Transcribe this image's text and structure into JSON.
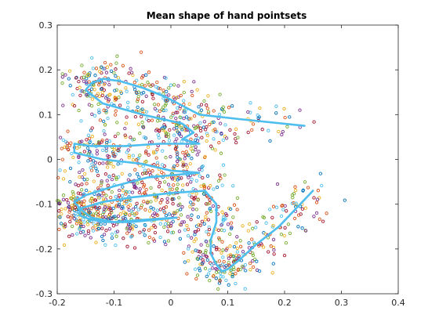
{
  "chart_data": {
    "type": "scatter",
    "title": "Mean shape of hand pointsets",
    "xlabel": "",
    "ylabel": "",
    "xlim": [
      -0.2,
      0.4
    ],
    "ylim": [
      -0.3,
      0.3
    ],
    "xticks": [
      -0.2,
      -0.1,
      0,
      0.1,
      0.2,
      0.3,
      0.4
    ],
    "xtick_labels": [
      "-0.2",
      "-0.1",
      "0",
      "0.1",
      "0.2",
      "0.3",
      "0.4"
    ],
    "yticks": [
      -0.3,
      -0.2,
      -0.1,
      0,
      0.1,
      0.2,
      0.3
    ],
    "ytick_labels": [
      "-0.3",
      "-0.2",
      "-0.1",
      "0",
      "0.1",
      "0.2",
      "0.3"
    ],
    "grid": false,
    "box": true,
    "scatter_colors": [
      "#0072BD",
      "#D95319",
      "#EDB120",
      "#7E2F8E",
      "#77AC30",
      "#4DBEEE",
      "#A2142F"
    ],
    "mean_line_color": "#4DBEEE",
    "mean_shape": {
      "name": "mean",
      "x": [
        0.235,
        0.12,
        0.05,
        0.02,
        -0.01,
        -0.05,
        -0.09,
        -0.12,
        -0.14,
        -0.15,
        -0.12,
        -0.05,
        0.02,
        0.04,
        0.02,
        0.05,
        -0.02,
        -0.08,
        -0.14,
        -0.17,
        -0.17,
        -0.12,
        -0.05,
        0.0,
        0.05,
        -0.04,
        -0.1,
        -0.15,
        -0.17,
        -0.16,
        -0.14,
        -0.1,
        -0.05,
        0.01,
        -0.03,
        -0.07,
        -0.11,
        -0.14,
        -0.16,
        -0.16,
        -0.12,
        -0.07,
        0.0,
        0.06,
        0.08,
        0.08,
        0.07,
        0.07,
        0.08,
        0.09,
        0.1,
        0.12,
        0.15,
        0.19,
        0.22,
        0.25
      ],
      "y": [
        0.075,
        0.09,
        0.1,
        0.12,
        0.14,
        0.16,
        0.175,
        0.18,
        0.17,
        0.155,
        0.125,
        0.1,
        0.08,
        0.06,
        0.045,
        0.035,
        0.035,
        0.03,
        0.03,
        0.035,
        0.015,
        0.0,
        -0.01,
        -0.025,
        -0.03,
        -0.04,
        -0.06,
        -0.08,
        -0.095,
        -0.11,
        -0.13,
        -0.14,
        -0.135,
        -0.13,
        -0.135,
        -0.14,
        -0.14,
        -0.135,
        -0.125,
        -0.11,
        -0.095,
        -0.085,
        -0.075,
        -0.07,
        -0.1,
        -0.14,
        -0.18,
        -0.21,
        -0.235,
        -0.25,
        -0.245,
        -0.225,
        -0.19,
        -0.15,
        -0.11,
        -0.07
      ]
    }
  }
}
